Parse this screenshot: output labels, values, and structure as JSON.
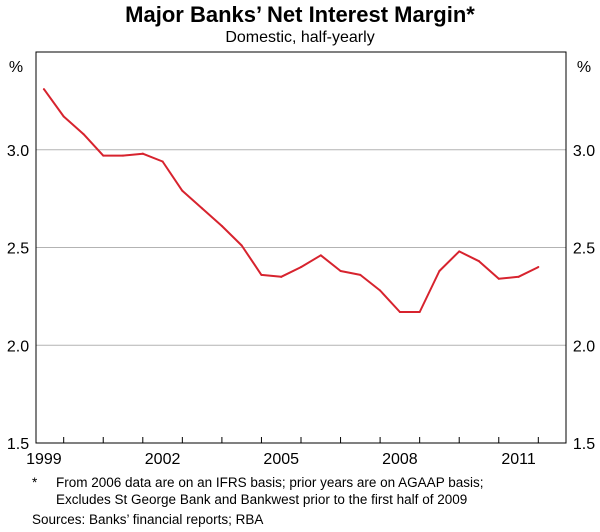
{
  "chart_data": {
    "type": "line",
    "title": "Major Banks’ Net Interest Margin*",
    "subtitle": "Domestic, half-yearly",
    "y_unit_left": "%",
    "y_unit_right": "%",
    "ylim": [
      1.5,
      3.5
    ],
    "y_ticks": [
      "1.5",
      "2.0",
      "2.5",
      "3.0"
    ],
    "y_tick_values": [
      1.5,
      2.0,
      2.5,
      3.0
    ],
    "x_ticks": [
      "1999",
      "2002",
      "2005",
      "2008",
      "2011"
    ],
    "x_tick_values": [
      1999,
      2002,
      2005,
      2008,
      2011
    ],
    "xlim": [
      1998.8,
      2012.2
    ],
    "grid": true,
    "line_color": "#d7232e",
    "series": [
      {
        "x": [
          1999.0,
          1999.5,
          2000.0,
          2000.5,
          2001.0,
          2001.5,
          2002.0,
          2002.5,
          2003.0,
          2003.5,
          2004.0,
          2004.5,
          2005.0,
          2005.5,
          2006.0,
          2006.5,
          2007.0,
          2007.5,
          2008.0,
          2008.5,
          2009.0,
          2009.5,
          2010.0,
          2010.5,
          2011.0,
          2011.5
        ],
        "values": [
          3.31,
          3.17,
          3.08,
          2.97,
          2.97,
          2.98,
          2.94,
          2.79,
          2.7,
          2.61,
          2.51,
          2.36,
          2.35,
          2.4,
          2.46,
          2.38,
          2.36,
          2.28,
          2.17,
          2.17,
          2.38,
          2.48,
          2.43,
          2.34,
          2.35,
          2.4
        ]
      }
    ]
  },
  "footnote": {
    "marker": "*",
    "line1": "From 2006 data are on an IFRS basis; prior years are on AGAAP basis;",
    "line2": "Excludes St George Bank and Bankwest prior to the first half of 2009"
  },
  "sources": "Sources: Banks’ financial reports; RBA"
}
